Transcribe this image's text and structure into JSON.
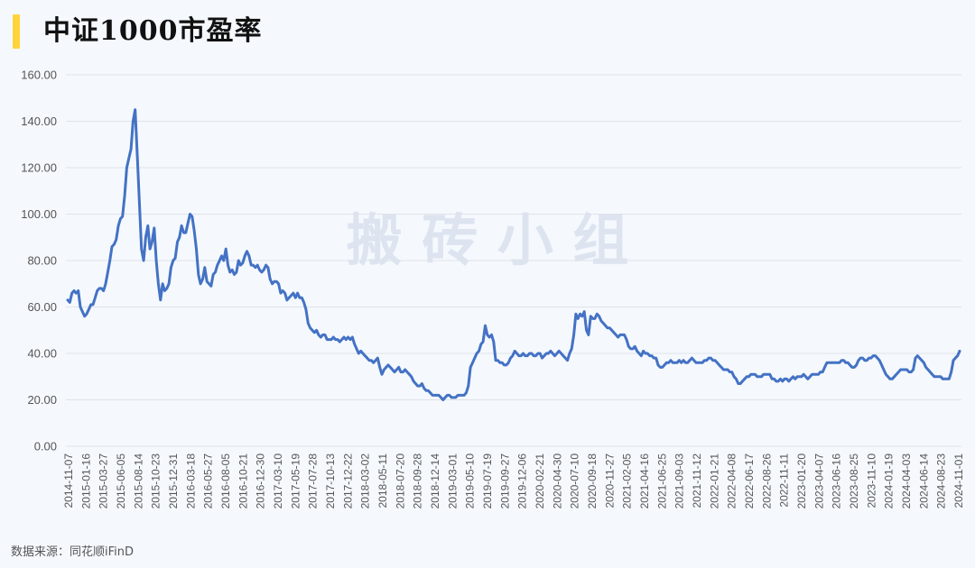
{
  "title": "中证1000市盈率",
  "source": "数据来源：同花顺iFinD",
  "watermark": "搬 砖 小 组",
  "colors": {
    "line": "#4472c4",
    "grid": "#dfe3e8",
    "accent": "#ffd43b",
    "background": "#f5f9fe"
  },
  "chart_data": {
    "type": "line",
    "title": "中证1000市盈率",
    "xlabel": "",
    "ylabel": "",
    "ylim": [
      0,
      160
    ],
    "yticks": [
      "0.00",
      "20.00",
      "40.00",
      "60.00",
      "80.00",
      "100.00",
      "120.00",
      "140.00",
      "160.00"
    ],
    "grid": true,
    "legend": "none",
    "xtick_labels": [
      "2014-11-07",
      "2015-01-16",
      "2015-03-27",
      "2015-06-05",
      "2015-08-14",
      "2015-10-23",
      "2015-12-31",
      "2016-03-18",
      "2016-05-27",
      "2016-08-05",
      "2016-10-21",
      "2016-12-30",
      "2017-03-10",
      "2017-05-19",
      "2017-07-28",
      "2017-10-13",
      "2017-12-22",
      "2018-03-02",
      "2018-05-11",
      "2018-07-20",
      "2018-09-28",
      "2018-12-14",
      "2019-03-01",
      "2019-05-10",
      "2019-07-19",
      "2019-09-27",
      "2019-12-06",
      "2020-02-21",
      "2020-04-30",
      "2020-07-10",
      "2020-09-18",
      "2020-11-27",
      "2021-02-05",
      "2021-04-16",
      "2021-06-25",
      "2021-09-03",
      "2021-11-12",
      "2022-01-21",
      "2022-04-08",
      "2022-06-17",
      "2022-08-26",
      "2022-11-11",
      "2023-01-20",
      "2023-04-07",
      "2023-06-16",
      "2023-08-25",
      "2023-11-10",
      "2024-01-19",
      "2024-04-03",
      "2024-06-14",
      "2024-08-23",
      "2024-11-01"
    ],
    "series": [
      {
        "values": [
          63,
          62,
          66,
          67,
          66,
          67,
          60,
          58,
          56,
          57,
          59,
          61,
          61,
          64,
          67,
          68,
          68,
          67,
          70,
          75,
          80,
          86,
          87,
          89,
          95,
          98,
          99,
          108,
          120,
          124,
          128,
          140,
          145,
          125,
          105,
          85,
          80,
          90,
          95,
          85,
          88,
          94,
          80,
          70,
          63,
          70,
          67,
          68,
          70,
          77,
          80,
          81,
          88,
          90,
          95,
          92,
          92,
          96,
          100,
          99,
          93,
          85,
          74,
          70,
          72,
          77,
          71,
          70,
          69,
          74,
          75,
          78,
          80,
          82,
          80,
          85,
          78,
          75,
          76,
          74,
          75,
          80,
          78,
          79,
          82,
          84,
          82,
          78,
          78,
          77,
          78,
          76,
          75,
          76,
          78,
          77,
          72,
          70,
          71,
          71,
          70,
          66,
          67,
          66,
          63,
          64,
          65,
          66,
          64,
          66,
          64,
          64,
          62,
          59,
          53,
          51,
          50,
          49,
          50,
          48,
          47,
          48,
          48,
          46,
          46,
          46,
          47,
          46,
          46,
          45,
          46,
          47,
          46,
          47,
          46,
          47,
          44,
          42,
          40,
          41,
          40,
          39,
          38,
          37,
          37,
          36,
          37,
          38,
          34,
          31,
          33,
          34,
          35,
          34,
          33,
          32,
          33,
          34,
          32,
          32,
          33,
          32,
          31,
          30,
          28,
          27,
          26,
          26,
          27,
          25,
          24,
          24,
          23,
          22,
          22,
          22,
          22,
          21,
          20,
          21,
          22,
          22,
          21,
          21,
          21,
          22,
          22,
          22,
          22,
          23,
          26,
          34,
          36,
          38,
          40,
          41,
          44,
          45,
          52,
          48,
          47,
          48,
          45,
          37,
          37,
          36,
          36,
          35,
          35,
          36,
          38,
          39,
          41,
          40,
          39,
          39,
          40,
          39,
          39,
          40,
          40,
          39,
          39,
          40,
          40,
          38,
          39,
          40,
          40,
          41,
          40,
          39,
          40,
          41,
          40,
          39,
          38,
          37,
          40,
          42,
          48,
          57,
          55,
          57,
          56,
          58,
          50,
          48,
          56,
          55,
          55,
          57,
          56,
          54,
          53,
          52,
          51,
          51,
          50,
          49,
          48,
          47,
          48,
          48,
          48,
          46,
          43,
          42,
          42,
          43,
          41,
          40,
          39,
          41,
          40,
          40,
          39,
          39,
          38,
          38,
          35,
          34,
          34,
          35,
          36,
          36,
          37,
          36,
          36,
          36,
          37,
          36,
          37,
          36,
          36,
          37,
          38,
          37,
          36,
          36,
          36,
          36,
          37,
          37,
          38,
          38,
          37,
          37,
          36,
          35,
          34,
          33,
          33,
          33,
          32,
          32,
          30,
          29,
          27,
          27,
          28,
          29,
          30,
          30,
          31,
          31,
          31,
          30,
          30,
          30,
          31,
          31,
          31,
          31,
          29,
          29,
          28,
          28,
          29,
          28,
          29,
          29,
          28,
          29,
          30,
          29,
          30,
          30,
          30,
          31,
          30,
          29,
          30,
          31,
          31,
          31,
          31,
          32,
          32,
          34,
          36,
          36,
          36,
          36,
          36,
          36,
          36,
          37,
          37,
          36,
          36,
          35,
          34,
          34,
          35,
          37,
          38,
          38,
          37,
          37,
          38,
          38,
          39,
          39,
          38,
          37,
          35,
          33,
          31,
          30,
          29,
          29,
          30,
          31,
          32,
          33,
          33,
          33,
          33,
          32,
          32,
          33,
          38,
          39,
          38,
          37,
          36,
          34,
          33,
          32,
          31,
          30,
          30,
          30,
          30,
          29,
          29,
          29,
          29,
          32,
          37,
          38,
          39,
          41
        ]
      }
    ]
  }
}
